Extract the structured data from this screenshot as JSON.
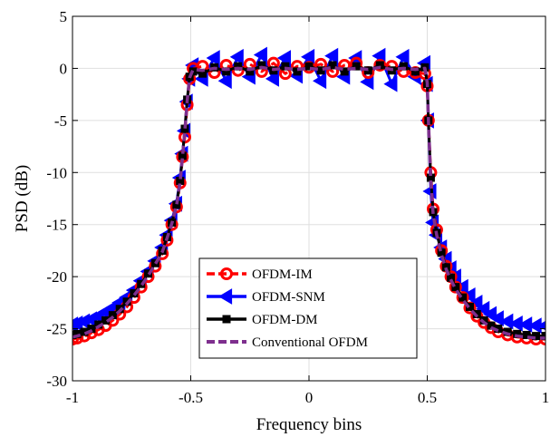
{
  "chart_data": {
    "type": "line",
    "xlabel": "Frequency bins",
    "ylabel": "PSD (dB)",
    "xlim": [
      -1,
      1
    ],
    "ylim": [
      -30,
      5
    ],
    "xticks": [
      "-1",
      "-0.5",
      "0",
      "0.5",
      "1"
    ],
    "yticks": [
      "5",
      "0",
      "-5",
      "-10",
      "-15",
      "-20",
      "-25",
      "-30"
    ],
    "grid": true,
    "legend_position": "lower-center",
    "series": [
      {
        "name": "OFDM-IM",
        "color": "#ff0000",
        "marker": "circle",
        "linestyle": "dashed",
        "points": [
          [
            -1,
            -26
          ],
          [
            -0.98,
            -25.9
          ],
          [
            -0.95,
            -25.7
          ],
          [
            -0.92,
            -25.4
          ],
          [
            -0.89,
            -25.1
          ],
          [
            -0.86,
            -24.7
          ],
          [
            -0.83,
            -24.2
          ],
          [
            -0.8,
            -23.6
          ],
          [
            -0.77,
            -22.9
          ],
          [
            -0.74,
            -22
          ],
          [
            -0.71,
            -21
          ],
          [
            -0.68,
            -20
          ],
          [
            -0.65,
            -19
          ],
          [
            -0.62,
            -17.8
          ],
          [
            -0.6,
            -16.5
          ],
          [
            -0.58,
            -15
          ],
          [
            -0.56,
            -13.3
          ],
          [
            -0.545,
            -11
          ],
          [
            -0.535,
            -8.5
          ],
          [
            -0.525,
            -6.6
          ],
          [
            -0.515,
            -3.5
          ],
          [
            -0.505,
            -1
          ],
          [
            -0.49,
            0
          ],
          [
            -0.45,
            0.2
          ],
          [
            -0.4,
            -0.4
          ],
          [
            -0.35,
            0.3
          ],
          [
            -0.3,
            -0.2
          ],
          [
            -0.25,
            0.4
          ],
          [
            -0.2,
            -0.3
          ],
          [
            -0.15,
            0.5
          ],
          [
            -0.1,
            -0.5
          ],
          [
            -0.05,
            0.2
          ],
          [
            0,
            0.1
          ],
          [
            0.05,
            0.4
          ],
          [
            0.1,
            -0.3
          ],
          [
            0.15,
            0.3
          ],
          [
            0.2,
            0.5
          ],
          [
            0.25,
            -0.4
          ],
          [
            0.3,
            0.3
          ],
          [
            0.35,
            0.2
          ],
          [
            0.4,
            -0.3
          ],
          [
            0.45,
            -0.4
          ],
          [
            0.49,
            -0.5
          ],
          [
            0.5,
            -1.7
          ],
          [
            0.505,
            -5
          ],
          [
            0.515,
            -10
          ],
          [
            0.525,
            -13.5
          ],
          [
            0.54,
            -15.5
          ],
          [
            0.56,
            -17.5
          ],
          [
            0.58,
            -19
          ],
          [
            0.6,
            -20
          ],
          [
            0.62,
            -21
          ],
          [
            0.65,
            -22
          ],
          [
            0.68,
            -23
          ],
          [
            0.71,
            -23.8
          ],
          [
            0.74,
            -24.4
          ],
          [
            0.77,
            -24.9
          ],
          [
            0.8,
            -25.3
          ],
          [
            0.84,
            -25.6
          ],
          [
            0.88,
            -25.8
          ],
          [
            0.92,
            -25.9
          ],
          [
            0.96,
            -26
          ],
          [
            1,
            -26
          ]
        ]
      },
      {
        "name": "OFDM-SNM",
        "color": "#0000ff",
        "marker": "triangle-left",
        "linestyle": "solid",
        "points": [
          [
            -1,
            -24.6
          ],
          [
            -0.98,
            -24.5
          ],
          [
            -0.95,
            -24.3
          ],
          [
            -0.92,
            -24.1
          ],
          [
            -0.89,
            -23.8
          ],
          [
            -0.86,
            -23.4
          ],
          [
            -0.83,
            -23
          ],
          [
            -0.8,
            -22.5
          ],
          [
            -0.77,
            -22
          ],
          [
            -0.74,
            -21.3
          ],
          [
            -0.71,
            -20.4
          ],
          [
            -0.68,
            -19.5
          ],
          [
            -0.65,
            -18.5
          ],
          [
            -0.62,
            -17.2
          ],
          [
            -0.6,
            -16
          ],
          [
            -0.58,
            -14.6
          ],
          [
            -0.56,
            -13
          ],
          [
            -0.545,
            -10.5
          ],
          [
            -0.535,
            -8.2
          ],
          [
            -0.525,
            -6
          ],
          [
            -0.515,
            -3.2
          ],
          [
            -0.505,
            -1
          ],
          [
            -0.49,
            0.3
          ],
          [
            -0.45,
            -1
          ],
          [
            -0.4,
            1
          ],
          [
            -0.35,
            -1.2
          ],
          [
            -0.3,
            1.1
          ],
          [
            -0.25,
            -0.8
          ],
          [
            -0.2,
            1.3
          ],
          [
            -0.15,
            -1
          ],
          [
            -0.1,
            1
          ],
          [
            -0.05,
            -0.7
          ],
          [
            0,
            1.1
          ],
          [
            0.05,
            -1.2
          ],
          [
            0.1,
            1.2
          ],
          [
            0.15,
            -0.8
          ],
          [
            0.2,
            1
          ],
          [
            0.25,
            -1.3
          ],
          [
            0.3,
            1.2
          ],
          [
            0.35,
            -1.5
          ],
          [
            0.4,
            1.1
          ],
          [
            0.45,
            -0.8
          ],
          [
            0.49,
            0.5
          ],
          [
            0.5,
            -1.5
          ],
          [
            0.505,
            -5
          ],
          [
            0.515,
            -11.8
          ],
          [
            0.525,
            -14.8
          ],
          [
            0.54,
            -16
          ],
          [
            0.56,
            -17.2
          ],
          [
            0.58,
            -18.3
          ],
          [
            0.6,
            -19.2
          ],
          [
            0.62,
            -20
          ],
          [
            0.65,
            -21
          ],
          [
            0.68,
            -21.8
          ],
          [
            0.71,
            -22.5
          ],
          [
            0.74,
            -23.1
          ],
          [
            0.77,
            -23.6
          ],
          [
            0.8,
            -24
          ],
          [
            0.84,
            -24.3
          ],
          [
            0.88,
            -24.5
          ],
          [
            0.92,
            -24.6
          ],
          [
            0.96,
            -24.7
          ],
          [
            1,
            -24.7
          ]
        ]
      },
      {
        "name": "OFDM-DM",
        "color": "#000000",
        "marker": "square",
        "linestyle": "solid",
        "points": [
          [
            -1,
            -25.6
          ],
          [
            -0.98,
            -25.5
          ],
          [
            -0.95,
            -25.3
          ],
          [
            -0.92,
            -25
          ],
          [
            -0.89,
            -24.6
          ],
          [
            -0.86,
            -24.2
          ],
          [
            -0.83,
            -23.7
          ],
          [
            -0.8,
            -23.1
          ],
          [
            -0.77,
            -22.4
          ],
          [
            -0.74,
            -21.6
          ],
          [
            -0.71,
            -20.7
          ],
          [
            -0.68,
            -19.7
          ],
          [
            -0.65,
            -18.7
          ],
          [
            -0.62,
            -17.5
          ],
          [
            -0.6,
            -16.2
          ],
          [
            -0.58,
            -14.8
          ],
          [
            -0.56,
            -13.1
          ],
          [
            -0.545,
            -10.8
          ],
          [
            -0.535,
            -8.4
          ],
          [
            -0.525,
            -5.8
          ],
          [
            -0.515,
            -3
          ],
          [
            -0.505,
            -0.8
          ],
          [
            -0.49,
            -0.3
          ],
          [
            -0.45,
            -0.5
          ],
          [
            -0.4,
            0.1
          ],
          [
            -0.35,
            -0.3
          ],
          [
            -0.3,
            0.2
          ],
          [
            -0.25,
            -0.3
          ],
          [
            -0.2,
            0.3
          ],
          [
            -0.15,
            -0.2
          ],
          [
            -0.1,
            0.2
          ],
          [
            -0.05,
            -0.3
          ],
          [
            0,
            0.2
          ],
          [
            0.05,
            -0.2
          ],
          [
            0.1,
            0.3
          ],
          [
            0.15,
            -0.3
          ],
          [
            0.2,
            0.2
          ],
          [
            0.25,
            -0.2
          ],
          [
            0.3,
            0.3
          ],
          [
            0.35,
            -0.2
          ],
          [
            0.4,
            0.2
          ],
          [
            0.45,
            -0.3
          ],
          [
            0.49,
            0.1
          ],
          [
            0.5,
            -1.5
          ],
          [
            0.505,
            -5
          ],
          [
            0.515,
            -10.5
          ],
          [
            0.525,
            -13.8
          ],
          [
            0.54,
            -15.8
          ],
          [
            0.56,
            -17.7
          ],
          [
            0.58,
            -19.1
          ],
          [
            0.6,
            -20.1
          ],
          [
            0.62,
            -21
          ],
          [
            0.65,
            -22
          ],
          [
            0.68,
            -22.9
          ],
          [
            0.71,
            -23.6
          ],
          [
            0.74,
            -24.2
          ],
          [
            0.77,
            -24.7
          ],
          [
            0.8,
            -25
          ],
          [
            0.84,
            -25.3
          ],
          [
            0.88,
            -25.5
          ],
          [
            0.92,
            -25.6
          ],
          [
            0.96,
            -25.7
          ],
          [
            1,
            -25.7
          ]
        ]
      },
      {
        "name": "Conventional OFDM",
        "color": "#7e2f8e",
        "marker": "none",
        "linestyle": "dashed",
        "points": [
          [
            -1,
            -25.8
          ],
          [
            -0.98,
            -25.7
          ],
          [
            -0.95,
            -25.5
          ],
          [
            -0.92,
            -25.2
          ],
          [
            -0.89,
            -24.8
          ],
          [
            -0.86,
            -24.4
          ],
          [
            -0.83,
            -23.9
          ],
          [
            -0.8,
            -23.3
          ],
          [
            -0.77,
            -22.6
          ],
          [
            -0.74,
            -21.8
          ],
          [
            -0.71,
            -20.9
          ],
          [
            -0.68,
            -19.9
          ],
          [
            -0.65,
            -18.8
          ],
          [
            -0.62,
            -17.6
          ],
          [
            -0.6,
            -16.3
          ],
          [
            -0.58,
            -14.9
          ],
          [
            -0.56,
            -13.2
          ],
          [
            -0.545,
            -10.9
          ],
          [
            -0.535,
            -8.5
          ],
          [
            -0.525,
            -6
          ],
          [
            -0.515,
            -3.1
          ],
          [
            -0.505,
            -0.9
          ],
          [
            -0.49,
            -0.1
          ],
          [
            -0.45,
            -0.2
          ],
          [
            -0.4,
            0
          ],
          [
            -0.35,
            -0.1
          ],
          [
            -0.3,
            0
          ],
          [
            -0.25,
            -0.1
          ],
          [
            -0.2,
            0.1
          ],
          [
            -0.15,
            -0.1
          ],
          [
            -0.1,
            0
          ],
          [
            -0.05,
            -0.1
          ],
          [
            0,
            0
          ],
          [
            0.05,
            -0.1
          ],
          [
            0.1,
            0.1
          ],
          [
            0.15,
            -0.1
          ],
          [
            0.2,
            0
          ],
          [
            0.25,
            -0.1
          ],
          [
            0.3,
            0.1
          ],
          [
            0.35,
            -0.1
          ],
          [
            0.4,
            0
          ],
          [
            0.45,
            -0.1
          ],
          [
            0.49,
            0
          ],
          [
            0.5,
            -1.4
          ],
          [
            0.505,
            -5
          ],
          [
            0.515,
            -10.8
          ],
          [
            0.525,
            -14
          ],
          [
            0.54,
            -16
          ],
          [
            0.56,
            -17.9
          ],
          [
            0.58,
            -19.3
          ],
          [
            0.6,
            -20.3
          ],
          [
            0.62,
            -21.2
          ],
          [
            0.65,
            -22.2
          ],
          [
            0.68,
            -23.1
          ],
          [
            0.71,
            -23.8
          ],
          [
            0.74,
            -24.4
          ],
          [
            0.77,
            -24.9
          ],
          [
            0.8,
            -25.2
          ],
          [
            0.84,
            -25.5
          ],
          [
            0.88,
            -25.7
          ],
          [
            0.92,
            -25.8
          ],
          [
            0.96,
            -25.9
          ],
          [
            1,
            -25.9
          ]
        ]
      }
    ]
  }
}
